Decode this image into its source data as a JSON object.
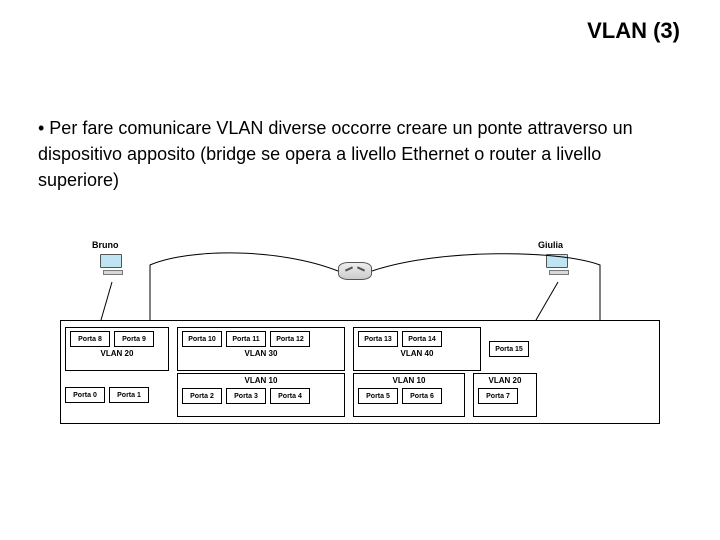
{
  "title": "VLAN (3)",
  "bullet_text": "• Per fare comunicare VLAN diverse occorre creare un ponte attraverso un dispositivo apposito (bridge se opera a livello Ethernet o router a livello superiore)",
  "hosts": {
    "left": "Bruno",
    "right": "Giulia"
  },
  "diagram": {
    "top_row": [
      {
        "vlan": "VLAN 20",
        "ports": [
          "Porta 8",
          "Porta 9"
        ],
        "label_pos": "below",
        "width": 104
      },
      {
        "vlan": "VLAN 30",
        "ports": [
          "Porta 10",
          "Porta 11",
          "Porta 12"
        ],
        "label_pos": "below",
        "width": 168
      },
      {
        "vlan": "VLAN 40",
        "ports": [
          "Porta 13",
          "Porta 14"
        ],
        "label_pos": "below",
        "width": 128
      },
      {
        "vlan": "",
        "ports": [
          "Porta 15"
        ],
        "label_pos": "none",
        "width": 56,
        "noborder": true
      }
    ],
    "bottom_row": [
      {
        "vlan": "",
        "ports": [
          "Porta 0",
          "Porta 1"
        ],
        "label_pos": "none",
        "width": 104,
        "noborder": true
      },
      {
        "vlan": "VLAN 10",
        "ports": [
          "Porta 2",
          "Porta 3",
          "Porta 4"
        ],
        "label_pos": "above",
        "width": 168
      },
      {
        "vlan": "VLAN 10",
        "ports": [
          "Porta 5",
          "Porta 6"
        ],
        "label_pos": "above",
        "width": 112
      },
      {
        "vlan": "VLAN 20",
        "ports": [
          "Porta 7"
        ],
        "label_pos": "above",
        "width": 64
      }
    ]
  },
  "style": {
    "title_fontsize": 22,
    "body_fontsize": 18,
    "port_font": 7,
    "vlan_font": 8,
    "colors": {
      "text": "#000000",
      "background": "#ffffff",
      "border": "#000000",
      "monitor": "#bfe4f2",
      "wire": "#000000"
    }
  }
}
